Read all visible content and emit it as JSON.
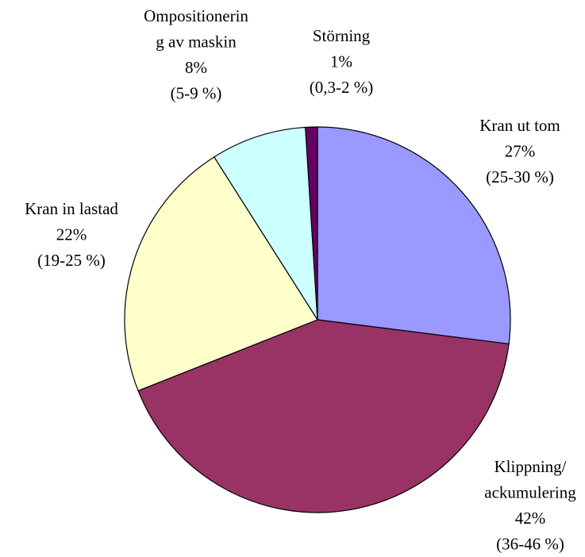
{
  "chart_data": {
    "type": "pie",
    "categories": [
      [
        "Kran ut tom"
      ],
      [
        "Klippning/",
        "ackumulering"
      ],
      [
        "Kran in lastad"
      ],
      [
        "Ompositionerin",
        "g av maskin"
      ],
      [
        "Störning"
      ]
    ],
    "values": [
      27,
      42,
      22,
      8,
      1
    ],
    "value_labels": [
      "27%",
      "42%",
      "22%",
      "8%",
      "1%"
    ],
    "ranges": [
      "(25-30 %)",
      "(36-46 %)",
      "(19-25 %)",
      "(5-9 %)",
      "(0,3-2 %)"
    ],
    "colors": [
      "#9999ff",
      "#993366",
      "#ffffcc",
      "#ccffff",
      "#660066"
    ]
  }
}
